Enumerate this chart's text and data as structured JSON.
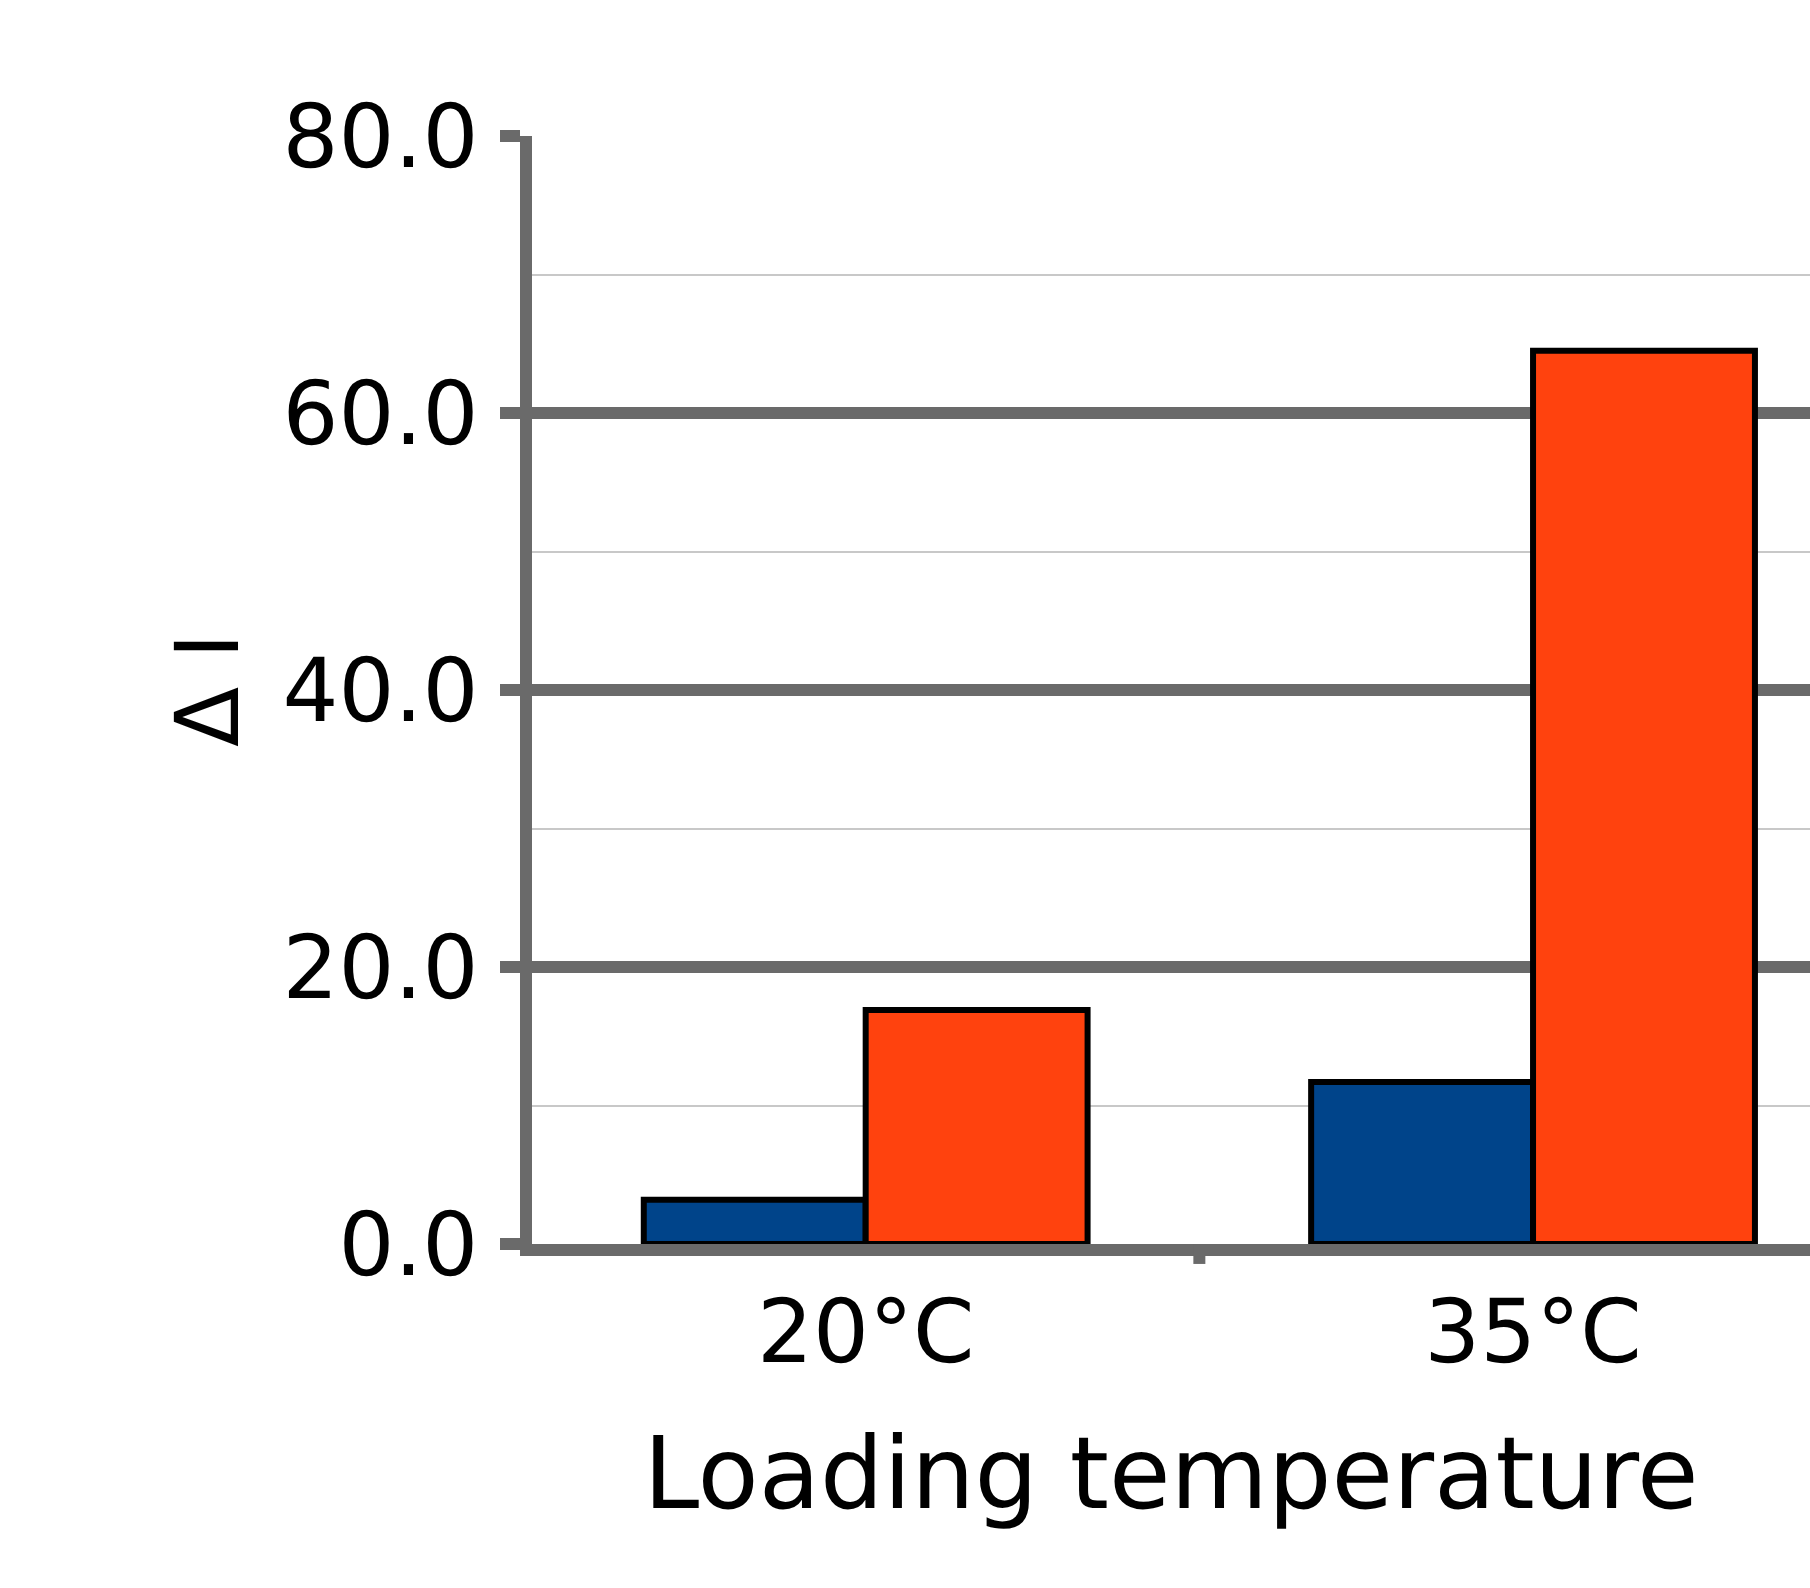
{
  "chart_data": {
    "type": "bar",
    "xlabel": "Loading temperature",
    "ylabel": "Δ I",
    "categories": [
      "20°C",
      "35°C"
    ],
    "series": [
      {
        "color": "#00448a",
        "values": [
          3.2,
          11.7
        ]
      },
      {
        "color": "#ff420e",
        "values": [
          16.9,
          64.5
        ]
      }
    ],
    "ylim": [
      0,
      80
    ],
    "yticks": [
      {
        "value": 0,
        "label": "0.0"
      },
      {
        "value": 20,
        "label": "20.0"
      },
      {
        "value": 40,
        "label": "40.0"
      },
      {
        "value": 60,
        "label": "60.0"
      },
      {
        "value": 80,
        "label": "80.0"
      }
    ],
    "grid": "y",
    "legend": false
  }
}
